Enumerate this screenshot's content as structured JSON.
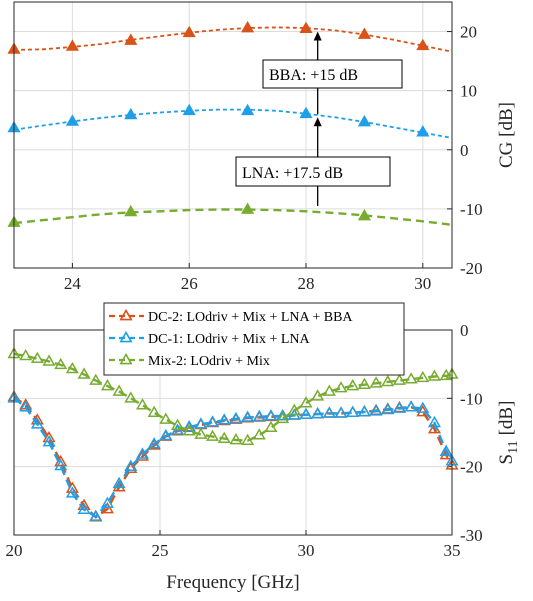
{
  "colors": {
    "dc2": "#D95319",
    "dc1": "#1E9FE8",
    "mix2": "#77AC30",
    "axis": "#262626"
  },
  "chart_data": [
    {
      "type": "line",
      "xlim": [
        23,
        30.5
      ],
      "ylim": [
        -20,
        25
      ],
      "xticks": [
        24,
        26,
        28,
        30
      ],
      "yticks": [
        -20,
        -10,
        0,
        10,
        20
      ],
      "ylabel": "CG [dB]",
      "grid": true,
      "yaxis_side": "right",
      "series": [
        {
          "key": "dc2",
          "marker": "triangle-filled",
          "markers": {
            "x": [
              23,
              24,
              25,
              26,
              27,
              28,
              29,
              30
            ],
            "y": [
              17,
              17.5,
              18.5,
              19.8,
              20.6,
              20.5,
              19.5,
              17.6
            ]
          },
          "curve": {
            "x": [
              23,
              23.5,
              24,
              24.5,
              25,
              25.5,
              26,
              26.5,
              27,
              27.5,
              28,
              28.5,
              29,
              29.5,
              30,
              30.5
            ],
            "y": [
              16.9,
              17.0,
              17.4,
              17.9,
              18.6,
              19.2,
              19.8,
              20.3,
              20.6,
              20.7,
              20.6,
              20.2,
              19.5,
              18.6,
              17.6,
              16.6
            ]
          }
        },
        {
          "key": "dc1",
          "marker": "triangle-filled",
          "markers": {
            "x": [
              23,
              24,
              25,
              26,
              27,
              28,
              29,
              30
            ],
            "y": [
              3.7,
              4.8,
              5.9,
              6.6,
              6.6,
              6.1,
              4.7,
              3.0
            ]
          },
          "curve": {
            "x": [
              23,
              23.5,
              24,
              24.5,
              25,
              25.5,
              26,
              26.5,
              27,
              27.5,
              28,
              28.5,
              29,
              29.5,
              30,
              30.5
            ],
            "y": [
              3.4,
              4.1,
              4.8,
              5.4,
              5.9,
              6.3,
              6.6,
              6.8,
              6.8,
              6.6,
              6.1,
              5.5,
              4.7,
              3.8,
              2.9,
              2.0
            ]
          }
        },
        {
          "key": "mix2",
          "marker": "triangle-filled",
          "markers": {
            "x": [
              23,
              25,
              27,
              29
            ],
            "y": [
              -12.3,
              -10.5,
              -10.1,
              -11.2
            ]
          },
          "curve": {
            "x": [
              23,
              23.5,
              24,
              24.5,
              25,
              25.5,
              26,
              26.5,
              27,
              27.5,
              28,
              28.5,
              29,
              29.5,
              30,
              30.5
            ],
            "y": [
              -12.4,
              -11.9,
              -11.4,
              -10.9,
              -10.6,
              -10.4,
              -10.2,
              -10.1,
              -10.1,
              -10.2,
              -10.4,
              -10.7,
              -11.1,
              -11.6,
              -12.1,
              -12.7
            ]
          }
        }
      ],
      "annotations": [
        {
          "text": "BBA: +15 dB",
          "arrow_x": 28.2,
          "arrow_from": 6,
          "arrow_to": 20
        },
        {
          "text": "LNA: +17.5 dB",
          "arrow_x": 28.2,
          "arrow_from": -9.5,
          "arrow_to": 5.5
        }
      ]
    },
    {
      "type": "line",
      "xlim": [
        20,
        35
      ],
      "ylim": [
        -30,
        0
      ],
      "xticks": [
        20,
        25,
        30,
        35
      ],
      "yticks": [
        -30,
        -20,
        -10,
        0
      ],
      "xlabel": "Frequency [GHz]",
      "ylabel": "S",
      "ylabel_sub": "11",
      "ylabel_unit": "[dB]",
      "grid": true,
      "yaxis_side": "right",
      "legend": "top-left",
      "series": [
        {
          "key": "dc2",
          "name": "DC-2:  LOdriv + Mix + LNA + BBA",
          "marker": "triangle-open",
          "x": [
            20,
            20.4,
            20.8,
            21.2,
            21.6,
            22.0,
            22.4,
            22.8,
            23.2,
            23.6,
            24.0,
            24.4,
            24.8,
            25.2,
            25.6,
            26.0,
            26.4,
            26.8,
            27.2,
            27.6,
            28.0,
            28.4,
            28.8,
            29.2,
            29.6,
            30.0,
            30.4,
            30.8,
            31.2,
            31.6,
            32.0,
            32.4,
            32.8,
            33.2,
            33.6,
            34.0,
            34.4,
            34.8,
            35.0
          ],
          "y": [
            -9.8,
            -11.0,
            -13.2,
            -15.8,
            -19.3,
            -23.2,
            -25.7,
            -27.4,
            -26.2,
            -23.0,
            -20.3,
            -18.5,
            -16.9,
            -15.6,
            -14.8,
            -14.3,
            -13.9,
            -13.6,
            -13.3,
            -13.1,
            -12.9,
            -12.8,
            -12.7,
            -12.6,
            -12.5,
            -12.4,
            -12.3,
            -12.2,
            -12.2,
            -12.1,
            -12.0,
            -11.8,
            -11.6,
            -11.4,
            -11.3,
            -12.0,
            -14.5,
            -18.3,
            -19.8
          ]
        },
        {
          "key": "dc1",
          "name": "DC-1:  LOdriv + Mix + LNA",
          "marker": "triangle-open",
          "x": [
            20,
            20.4,
            20.8,
            21.2,
            21.6,
            22.0,
            22.4,
            22.8,
            23.2,
            23.6,
            24.0,
            24.4,
            24.8,
            25.2,
            25.6,
            26.0,
            26.4,
            26.8,
            27.2,
            27.6,
            28.0,
            28.4,
            28.8,
            29.2,
            29.6,
            30.0,
            30.4,
            30.8,
            31.2,
            31.6,
            32.0,
            32.4,
            32.8,
            33.2,
            33.6,
            34.0,
            34.4,
            34.8,
            35.0
          ],
          "y": [
            -10.0,
            -11.3,
            -13.8,
            -16.4,
            -19.9,
            -23.9,
            -26.3,
            -27.3,
            -25.4,
            -22.5,
            -20.0,
            -18.2,
            -16.7,
            -15.5,
            -14.7,
            -14.2,
            -13.8,
            -13.5,
            -13.2,
            -13.0,
            -12.8,
            -12.7,
            -12.6,
            -12.6,
            -12.5,
            -12.4,
            -12.3,
            -12.2,
            -12.2,
            -12.1,
            -12.0,
            -11.9,
            -11.7,
            -11.5,
            -11.3,
            -11.5,
            -13.6,
            -17.8,
            -19.2
          ]
        },
        {
          "key": "mix2",
          "name": "Mix-2: LOdriv + Mix",
          "marker": "triangle-open",
          "x": [
            20,
            20.4,
            20.8,
            21.2,
            21.6,
            22.0,
            22.4,
            22.8,
            23.2,
            23.6,
            24.0,
            24.4,
            24.8,
            25.2,
            25.6,
            26.0,
            26.4,
            26.8,
            27.2,
            27.6,
            28.0,
            28.4,
            28.8,
            29.2,
            29.6,
            30.0,
            30.4,
            30.8,
            31.2,
            31.6,
            32.0,
            32.4,
            32.8,
            33.2,
            33.6,
            34.0,
            34.4,
            34.8,
            35.0
          ],
          "y": [
            -3.5,
            -3.8,
            -4.2,
            -4.6,
            -5.1,
            -5.7,
            -6.5,
            -7.4,
            -8.2,
            -9.0,
            -10.0,
            -11.0,
            -12.1,
            -13.1,
            -14.0,
            -14.8,
            -15.3,
            -15.6,
            -15.9,
            -16.1,
            -16.2,
            -15.4,
            -14.3,
            -13.0,
            -11.8,
            -10.7,
            -9.7,
            -9.0,
            -8.5,
            -8.2,
            -8.0,
            -7.8,
            -7.6,
            -7.4,
            -7.2,
            -7.0,
            -6.8,
            -6.7,
            -6.5
          ]
        }
      ]
    }
  ]
}
